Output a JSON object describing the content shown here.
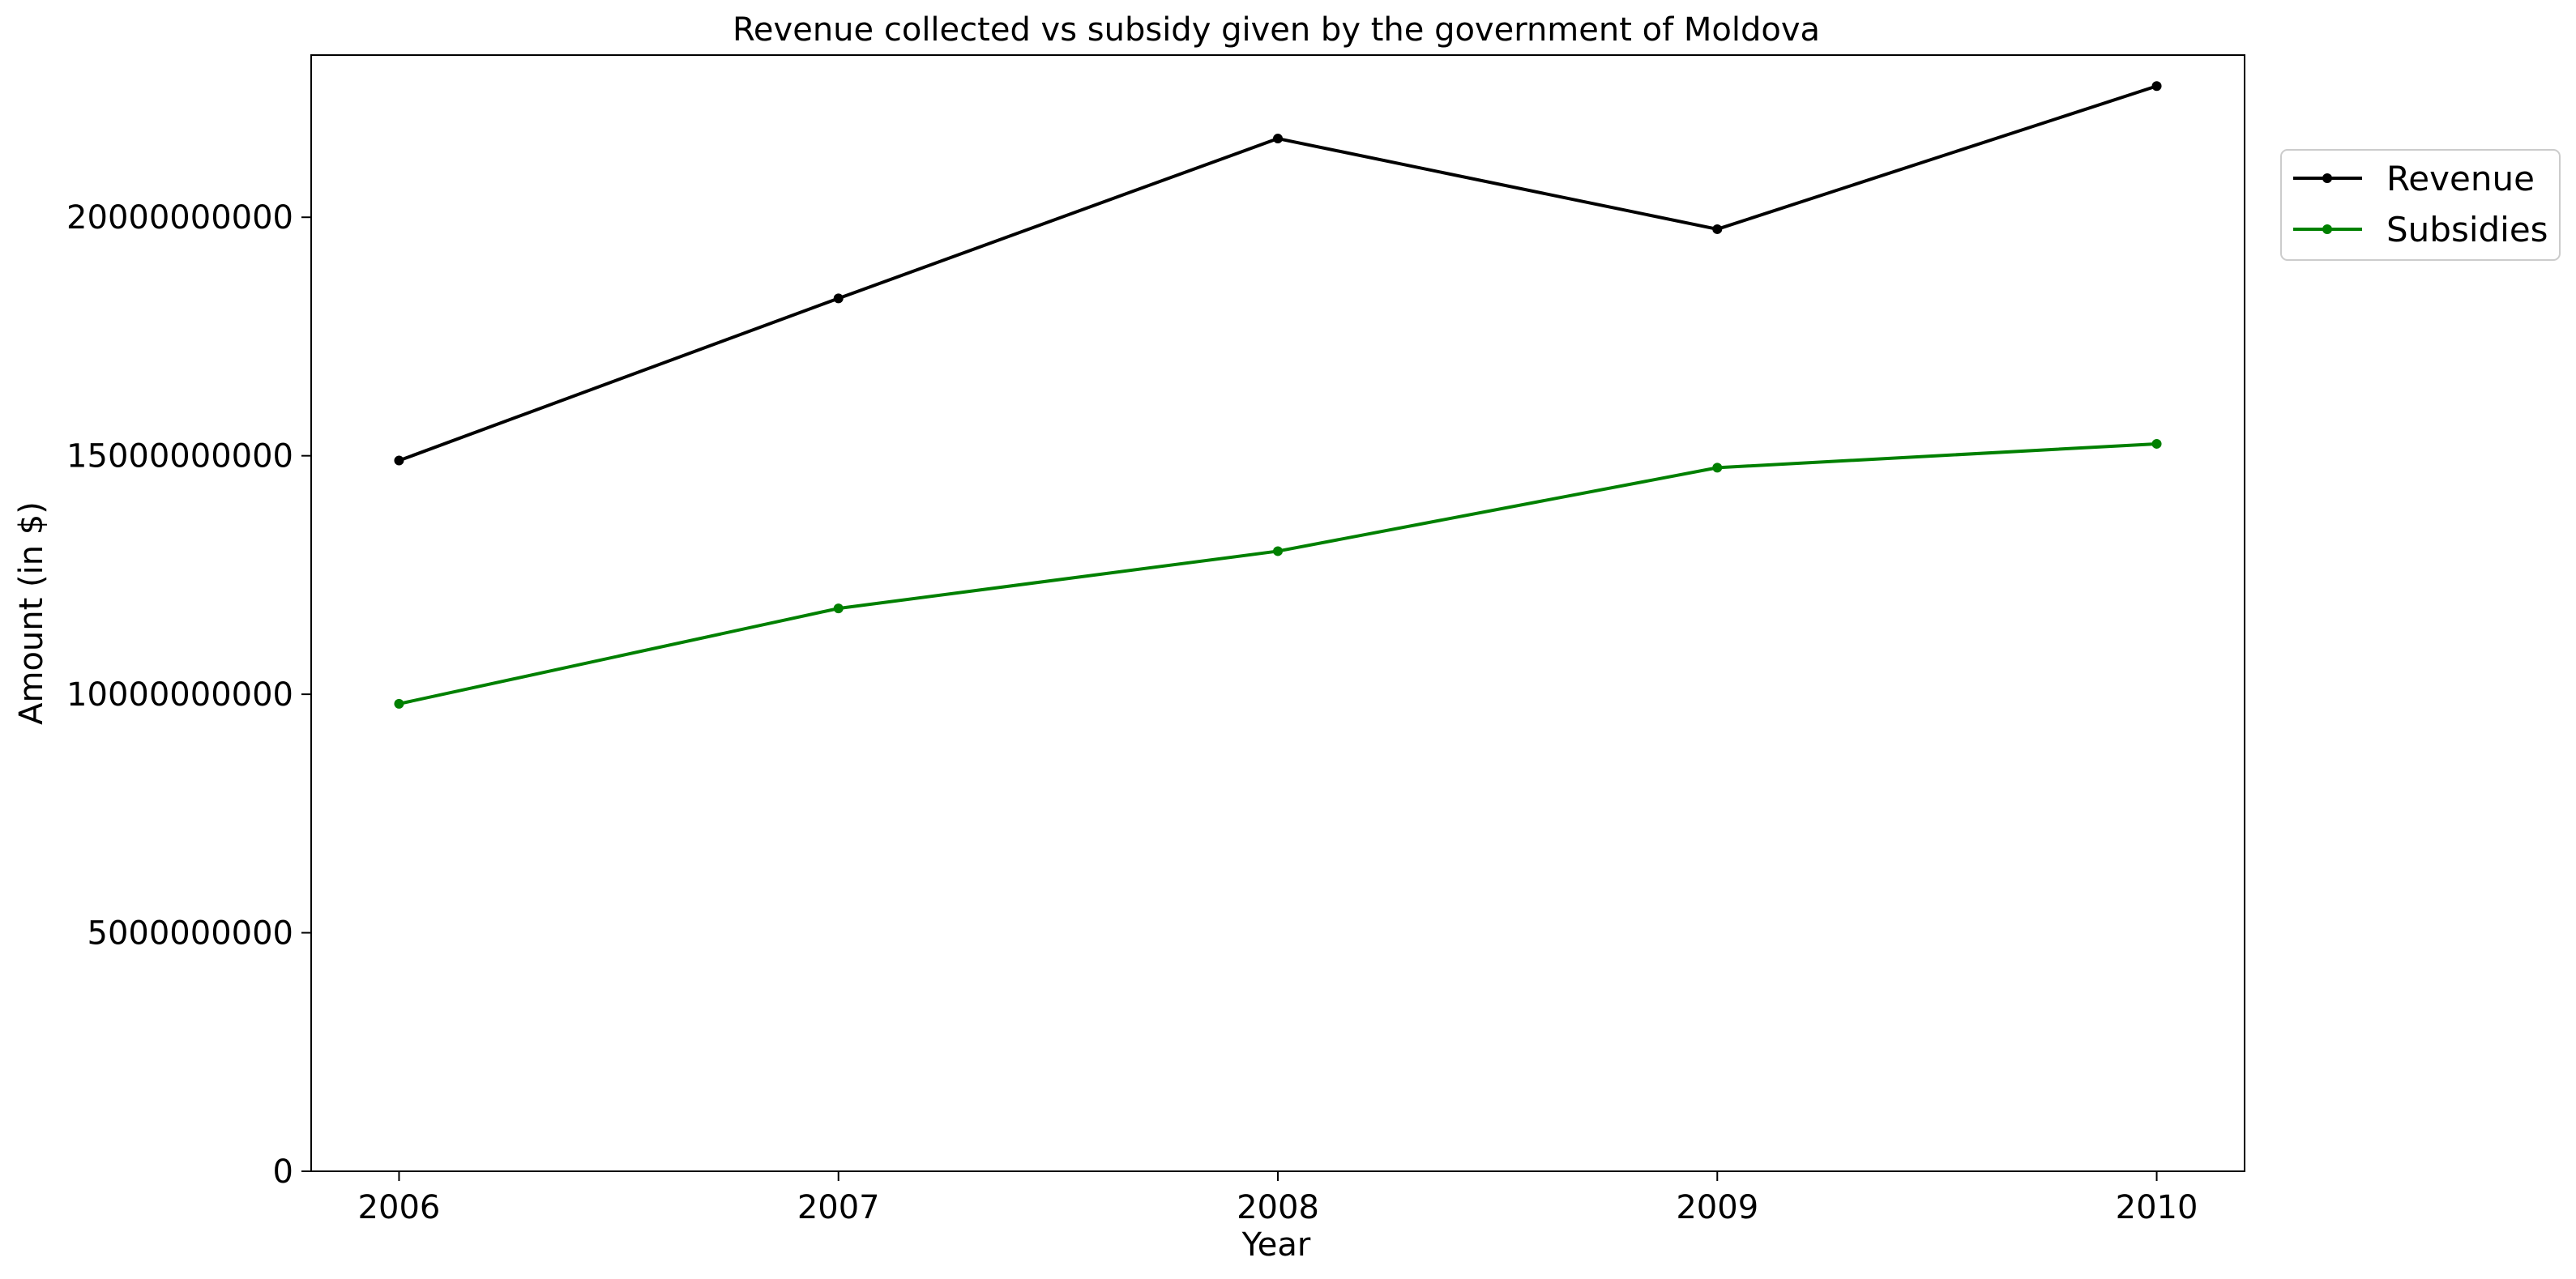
{
  "chart_data": {
    "type": "line",
    "title": "Revenue collected vs subsidy given by the government of Moldova",
    "xlabel": "Year",
    "ylabel": "Amount (in $)",
    "x": [
      "2006",
      "2007",
      "2008",
      "2009",
      "2010"
    ],
    "xlim": [
      2005.8,
      2010.2
    ],
    "ylim": [
      0,
      23400000000
    ],
    "yticks": [
      0,
      5000000000,
      10000000000,
      15000000000,
      20000000000
    ],
    "ytick_labels": [
      "0",
      "5000000000",
      "10000000000",
      "15000000000",
      "20000000000"
    ],
    "grid": false,
    "legend_position": "upper-right-outside",
    "series": [
      {
        "name": "Revenue",
        "color": "#000000",
        "values": [
          14900000000,
          18300000000,
          21650000000,
          19750000000,
          22750000000
        ]
      },
      {
        "name": "Subsidies",
        "color": "#008000",
        "values": [
          9800000000,
          11800000000,
          13000000000,
          14750000000,
          15250000000
        ]
      }
    ]
  }
}
